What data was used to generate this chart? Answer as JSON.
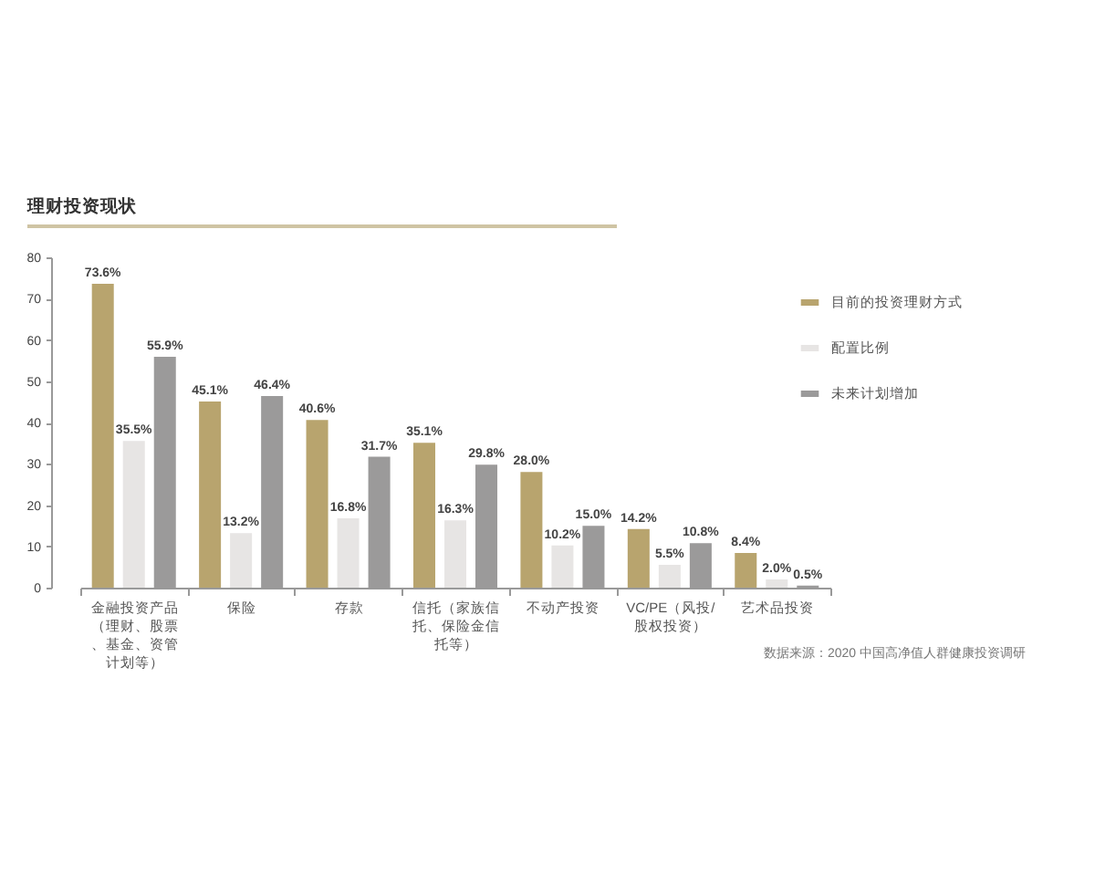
{
  "chart_data": {
    "type": "bar",
    "title": "理财投资现状",
    "categories": [
      "金融投资产品（理财、股票、基金、资管计划等）",
      "保险",
      "存款",
      "信托（家族信托、保险金信托等）",
      "不动产投资",
      "VC/PE（风投/股权投资）",
      "艺术品投资"
    ],
    "series": [
      {
        "name": "目前的投资理财方式",
        "color": "#b8a46e",
        "values": [
          73.6,
          45.1,
          40.6,
          35.1,
          28.0,
          14.2,
          8.4
        ],
        "value_labels": [
          "73.6%",
          "45.1%",
          "40.6%",
          "35.1%",
          "28.0%",
          "14.2%",
          "8.4%"
        ]
      },
      {
        "name": "配置比例",
        "color": "#e7e5e4",
        "values": [
          35.5,
          13.2,
          16.8,
          16.3,
          10.2,
          5.5,
          2.0
        ],
        "value_labels": [
          "35.5%",
          "13.2%",
          "16.8%",
          "16.3%",
          "10.2%",
          "5.5%",
          "2.0%"
        ]
      },
      {
        "name": "未来计划增加",
        "color": "#9b9a9a",
        "values": [
          55.9,
          46.4,
          31.7,
          29.8,
          15.0,
          10.8,
          0.5
        ],
        "value_labels": [
          "55.9%",
          "46.4%",
          "31.7%",
          "29.8%",
          "15.0%",
          "10.8%",
          "0.5%"
        ]
      }
    ],
    "ylim": [
      0,
      80
    ],
    "yticks": [
      0,
      10,
      20,
      30,
      40,
      50,
      60,
      70,
      80
    ],
    "legend": "top right",
    "annotations": [
      "数据来源：2020 中国高净值人群健康投资调研"
    ]
  }
}
